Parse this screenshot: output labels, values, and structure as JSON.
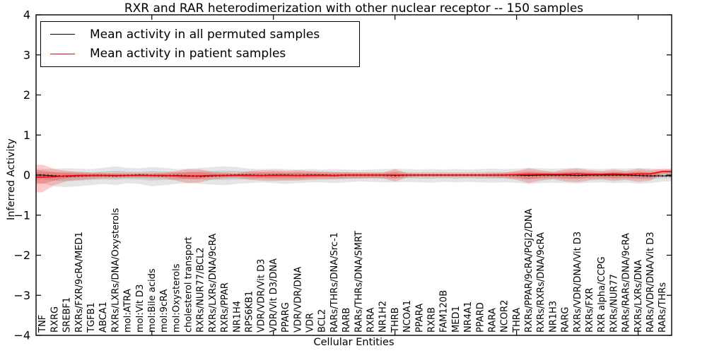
{
  "figure": {
    "title": "RXR and RAR heterodimerization with other nuclear receptor -- 150 samples",
    "xlabel": "Cellular Entities",
    "ylabel": "Inferred Activity"
  },
  "chart_data": {
    "type": "line",
    "title": "RXR and RAR heterodimerization with other nuclear receptor -- 150 samples",
    "xlabel": "Cellular Entities",
    "ylabel": "Inferred Activity",
    "ylim": [
      -4,
      4
    ],
    "yticks": [
      4,
      3,
      2,
      1,
      0,
      -1,
      -2,
      -3,
      -4
    ],
    "major_xtick_indices": [
      9,
      19,
      29,
      39,
      49
    ],
    "grid": false,
    "legend_position": "upper left",
    "categories": [
      "TNF",
      "RXRG",
      "SREBF1",
      "RXRs/FXR/9cRA/MED1",
      "TGFB1",
      "ABCA1",
      "RXRs/LXRs/DNA/Oxysterols",
      "mol:ATRA",
      "mol:Vit D3",
      "mol:Bile acids",
      "mol:9cRA",
      "mol:Oxysterols",
      "cholesterol transport",
      "RXRs/NUR77/BCL2",
      "RXRs/LXRs/DNA/9cRA",
      "RXRs/PPAR",
      "NR1H4",
      "RPS6KB1",
      "VDR/VDR/Vit D3",
      "VDR/Vit D3/DNA",
      "PPARG",
      "VDR/VDR/DNA",
      "VDR",
      "BCL2",
      "RARs/THRs/DNA/Src-1",
      "RARB",
      "RARs/THRs/DNA/SMRT",
      "RXRA",
      "NR1H2",
      "THRB",
      "NCOA1",
      "PPARA",
      "RXRB",
      "FAM120B",
      "MED1",
      "NR4A1",
      "PPARD",
      "RARA",
      "NCOR2",
      "THRA",
      "RXRs/PPAR/9cRA/PGJ2/DNA",
      "RXRs/RXRs/DNA/9cRA",
      "NR1H3",
      "RARG",
      "RXRs/VDR/DNA/Vit D3",
      "RXRs/FXR",
      "RXR alpha/CCPG",
      "RXRs/NUR77",
      "RARs/RARs/DNA/9cRA",
      "RXRs/LXRs/DNA",
      "RARs/VDR/DNA/Vit D3",
      "RARs/THRs"
    ],
    "series": [
      {
        "name": "Mean activity in all permuted samples",
        "color": "#000000",
        "band_color": "rgba(0,0,0,0.10)",
        "mean": [
          0.0,
          -0.02,
          -0.03,
          -0.02,
          -0.01,
          -0.01,
          -0.02,
          -0.01,
          0.0,
          -0.01,
          -0.02,
          -0.01,
          -0.02,
          -0.03,
          -0.02,
          -0.01,
          0.0,
          0.0,
          -0.01,
          0.0,
          0.0,
          -0.01,
          0.0,
          0.0,
          -0.01,
          0.0,
          0.0,
          0.0,
          0.0,
          -0.01,
          0.0,
          0.0,
          0.0,
          0.0,
          0.0,
          0.0,
          0.0,
          0.0,
          0.0,
          0.0,
          -0.01,
          0.0,
          0.0,
          0.0,
          -0.01,
          0.0,
          0.0,
          0.0,
          0.0,
          -0.01,
          -0.02,
          -0.02
        ],
        "outer_hi": [
          0.15,
          0.16,
          0.17,
          0.16,
          0.15,
          0.18,
          0.22,
          0.18,
          0.17,
          0.2,
          0.18,
          0.15,
          0.16,
          0.18,
          0.2,
          0.22,
          0.2,
          0.16,
          0.15,
          0.16,
          0.15,
          0.14,
          0.15,
          0.14,
          0.15,
          0.14,
          0.13,
          0.14,
          0.15,
          0.16,
          0.15,
          0.14,
          0.15,
          0.14,
          0.15,
          0.14,
          0.15,
          0.16,
          0.15,
          0.16,
          0.18,
          0.17,
          0.16,
          0.17,
          0.18,
          0.16,
          0.15,
          0.17,
          0.16,
          0.18,
          0.17,
          0.14
        ],
        "outer_lo": [
          -0.2,
          -0.28,
          -0.3,
          -0.28,
          -0.25,
          -0.22,
          -0.25,
          -0.2,
          -0.22,
          -0.28,
          -0.25,
          -0.22,
          -0.2,
          -0.22,
          -0.24,
          -0.25,
          -0.22,
          -0.2,
          -0.18,
          -0.2,
          -0.22,
          -0.2,
          -0.18,
          -0.18,
          -0.2,
          -0.18,
          -0.16,
          -0.17,
          -0.18,
          -0.18,
          -0.17,
          -0.18,
          -0.19,
          -0.17,
          -0.18,
          -0.17,
          -0.18,
          -0.19,
          -0.18,
          -0.19,
          -0.22,
          -0.2,
          -0.19,
          -0.2,
          -0.21,
          -0.19,
          -0.18,
          -0.2,
          -0.19,
          -0.21,
          -0.2,
          -0.16
        ],
        "inner_hi": [
          0.07,
          0.08,
          0.08,
          0.08,
          0.07,
          0.09,
          0.11,
          0.09,
          0.08,
          0.1,
          0.09,
          0.07,
          0.08,
          0.09,
          0.1,
          0.11,
          0.1,
          0.08,
          0.07,
          0.08,
          0.07,
          0.07,
          0.07,
          0.07,
          0.07,
          0.07,
          0.06,
          0.07,
          0.07,
          0.08,
          0.07,
          0.07,
          0.07,
          0.07,
          0.07,
          0.07,
          0.07,
          0.08,
          0.07,
          0.08,
          0.09,
          0.08,
          0.08,
          0.08,
          0.09,
          0.08,
          0.07,
          0.08,
          0.08,
          0.09,
          0.08,
          0.07
        ],
        "inner_lo": [
          -0.1,
          -0.14,
          -0.15,
          -0.14,
          -0.12,
          -0.11,
          -0.12,
          -0.1,
          -0.11,
          -0.14,
          -0.12,
          -0.11,
          -0.1,
          -0.11,
          -0.12,
          -0.12,
          -0.11,
          -0.1,
          -0.09,
          -0.1,
          -0.11,
          -0.1,
          -0.09,
          -0.09,
          -0.1,
          -0.09,
          -0.08,
          -0.08,
          -0.09,
          -0.09,
          -0.08,
          -0.09,
          -0.09,
          -0.08,
          -0.09,
          -0.08,
          -0.09,
          -0.09,
          -0.09,
          -0.09,
          -0.11,
          -0.1,
          -0.09,
          -0.1,
          -0.1,
          -0.09,
          -0.09,
          -0.1,
          -0.09,
          -0.1,
          -0.1,
          -0.08
        ]
      },
      {
        "name": "Mean activity in patient samples",
        "color": "#ff0000",
        "band_color": "rgba(255,0,0,0.20)",
        "mean": [
          -0.05,
          -0.04,
          -0.02,
          -0.01,
          -0.01,
          -0.01,
          -0.01,
          -0.01,
          -0.01,
          -0.01,
          -0.01,
          -0.02,
          -0.03,
          -0.02,
          -0.01,
          -0.01,
          -0.01,
          -0.01,
          -0.01,
          -0.01,
          -0.01,
          -0.01,
          -0.01,
          -0.01,
          -0.01,
          0.0,
          0.0,
          0.0,
          0.0,
          0.0,
          0.0,
          0.0,
          0.0,
          0.0,
          0.0,
          0.0,
          0.0,
          0.0,
          0.0,
          0.01,
          0.02,
          0.02,
          0.02,
          0.02,
          0.03,
          0.02,
          0.02,
          0.03,
          0.02,
          0.03,
          0.03,
          0.09
        ],
        "outer_hi": [
          0.26,
          0.15,
          0.1,
          0.08,
          0.06,
          0.06,
          0.05,
          0.05,
          0.05,
          0.05,
          0.06,
          0.1,
          0.15,
          0.14,
          0.08,
          0.06,
          0.05,
          0.1,
          0.12,
          0.12,
          0.11,
          0.12,
          0.1,
          0.09,
          0.08,
          0.07,
          0.07,
          0.06,
          0.06,
          0.15,
          0.05,
          0.04,
          0.04,
          0.04,
          0.04,
          0.04,
          0.04,
          0.05,
          0.06,
          0.1,
          0.17,
          0.12,
          0.08,
          0.14,
          0.17,
          0.12,
          0.1,
          0.14,
          0.1,
          0.16,
          0.13,
          0.16
        ],
        "outer_lo": [
          -0.43,
          -0.25,
          -0.15,
          -0.12,
          -0.1,
          -0.08,
          -0.08,
          -0.07,
          -0.07,
          -0.08,
          -0.08,
          -0.14,
          -0.2,
          -0.18,
          -0.1,
          -0.08,
          -0.07,
          -0.12,
          -0.14,
          -0.15,
          -0.14,
          -0.14,
          -0.12,
          -0.11,
          -0.1,
          -0.09,
          -0.09,
          -0.08,
          -0.08,
          -0.16,
          -0.06,
          -0.05,
          -0.05,
          -0.05,
          -0.05,
          -0.05,
          -0.05,
          -0.06,
          -0.07,
          -0.12,
          -0.2,
          -0.14,
          -0.1,
          -0.16,
          -0.18,
          -0.13,
          -0.11,
          -0.15,
          -0.12,
          -0.17,
          -0.14,
          0.02
        ],
        "inner_hi": [
          0.12,
          0.07,
          0.05,
          0.04,
          0.03,
          0.03,
          0.02,
          0.02,
          0.02,
          0.02,
          0.03,
          0.05,
          0.07,
          0.07,
          0.04,
          0.03,
          0.02,
          0.05,
          0.06,
          0.06,
          0.05,
          0.06,
          0.05,
          0.04,
          0.04,
          0.03,
          0.03,
          0.03,
          0.03,
          0.07,
          0.02,
          0.02,
          0.02,
          0.02,
          0.02,
          0.02,
          0.02,
          0.02,
          0.03,
          0.05,
          0.08,
          0.06,
          0.04,
          0.07,
          0.08,
          0.06,
          0.05,
          0.07,
          0.05,
          0.08,
          0.06,
          0.12
        ],
        "inner_lo": [
          -0.22,
          -0.13,
          -0.08,
          -0.06,
          -0.05,
          -0.04,
          -0.04,
          -0.03,
          -0.03,
          -0.04,
          -0.04,
          -0.07,
          -0.1,
          -0.09,
          -0.05,
          -0.04,
          -0.03,
          -0.06,
          -0.07,
          -0.07,
          -0.07,
          -0.07,
          -0.06,
          -0.05,
          -0.05,
          -0.04,
          -0.04,
          -0.04,
          -0.04,
          -0.08,
          -0.03,
          -0.02,
          -0.02,
          -0.02,
          -0.02,
          -0.02,
          -0.02,
          -0.03,
          -0.03,
          -0.06,
          -0.1,
          -0.07,
          -0.05,
          -0.08,
          -0.09,
          -0.06,
          -0.05,
          -0.07,
          -0.06,
          -0.08,
          -0.07,
          0.06
        ]
      }
    ]
  }
}
